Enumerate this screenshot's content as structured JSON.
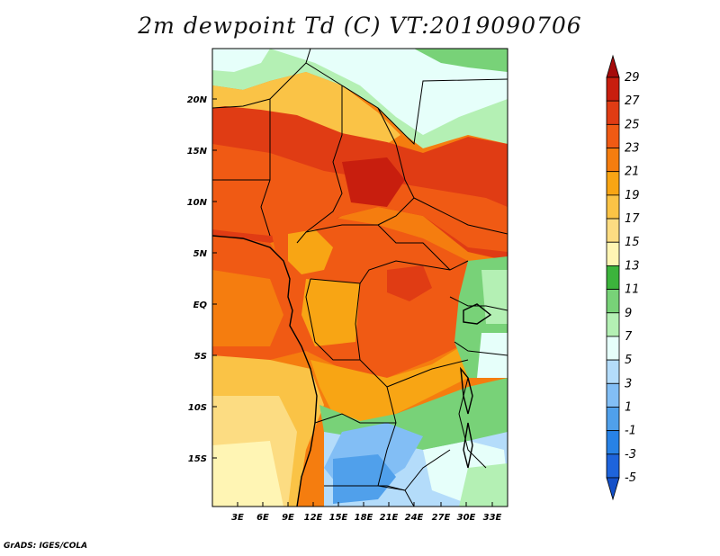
{
  "title": "2m dewpoint Td (C) VT:2019090706",
  "credit": "GrADS: IGES/COLA",
  "lat_labels": [
    "20N",
    "15N",
    "10N",
    "5N",
    "EQ",
    "5S",
    "10S",
    "15S"
  ],
  "lon_labels": [
    "3E",
    "6E",
    "9E",
    "12E",
    "15E",
    "18E",
    "21E",
    "24E",
    "27E",
    "30E",
    "33E"
  ],
  "colorbar": {
    "labels": [
      "29",
      "27",
      "25",
      "23",
      "21",
      "19",
      "17",
      "15",
      "13",
      "11",
      "9",
      "7",
      "5",
      "3",
      "1",
      "-1",
      "-3",
      "-5"
    ],
    "colors": [
      "#a50a0a",
      "#c81e0e",
      "#e03c14",
      "#f05a14",
      "#f57d0f",
      "#f8a514",
      "#fac346",
      "#fcdc82",
      "#fff5b4",
      "#3cb43c",
      "#78d278",
      "#b4f0b4",
      "#e6fffa",
      "#b4dcfa",
      "#82bef5",
      "#50a0eb",
      "#2882e6",
      "#1e64dc",
      "#1450c8"
    ]
  },
  "map": {
    "lon_range": [
      0,
      35
    ],
    "lat_range": [
      -20,
      24
    ],
    "variable": "2m dewpoint",
    "units": "C"
  }
}
